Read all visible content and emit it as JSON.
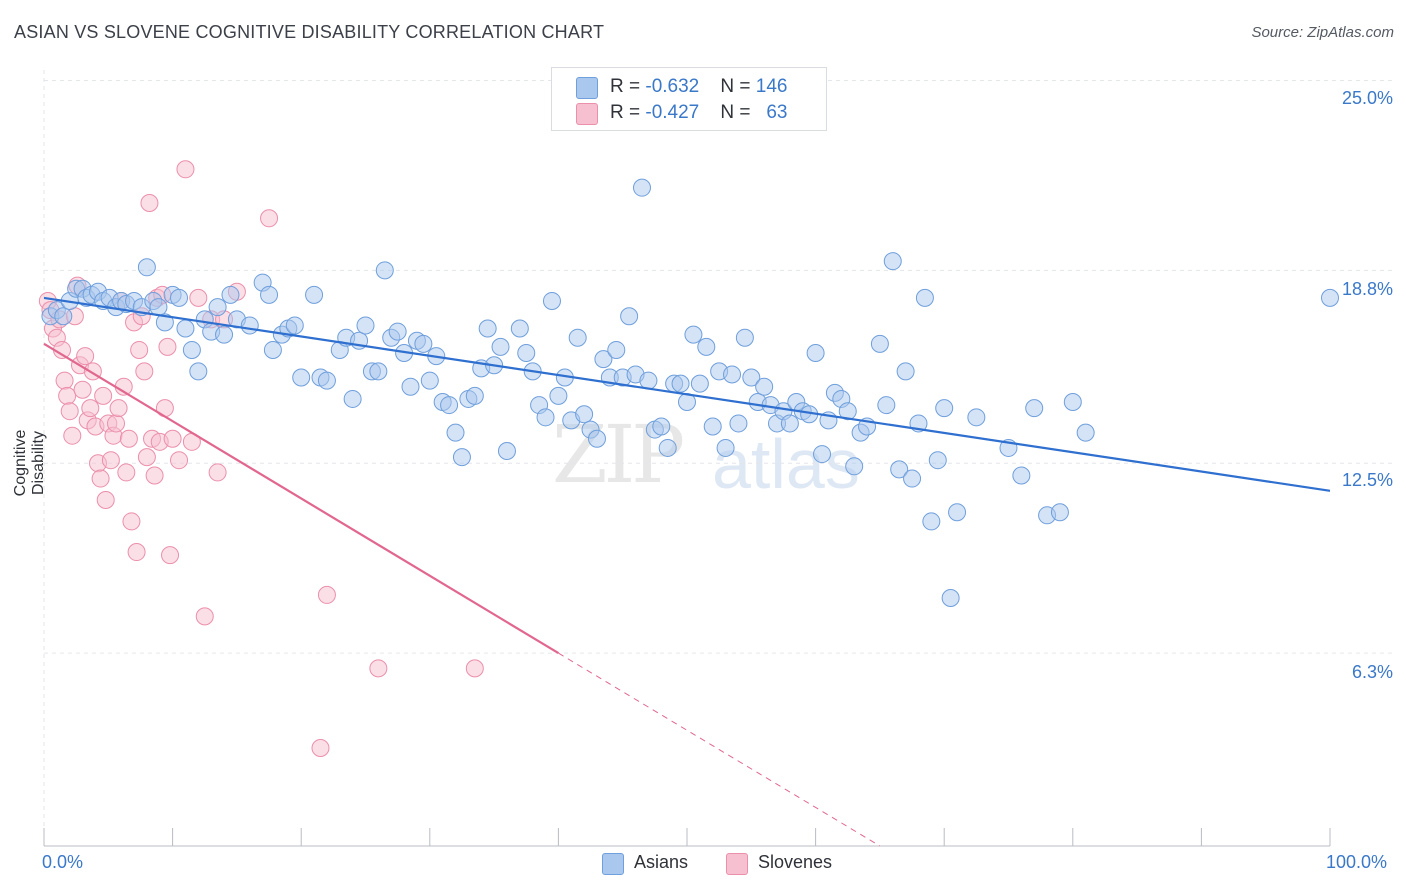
{
  "title": "ASIAN VS SLOVENE COGNITIVE DISABILITY CORRELATION CHART",
  "source": "Source: ZipAtlas.com",
  "watermark": {
    "zip": "ZIP",
    "atlas": "atlas"
  },
  "colors": {
    "asian_fill": "#aac8ee",
    "asian_stroke": "#6f9fdc",
    "asian_line": "#2e6fcf",
    "slovene_fill": "#f6c0d0",
    "slovene_stroke": "#ec8fab",
    "slovene_line": "#e2678f",
    "tick_label": "#3a78c9",
    "grid": "#e3e6ea"
  },
  "legend_top": {
    "asian": {
      "r_label": "R = ",
      "r_value": "-0.632",
      "n_label": "N = ",
      "n_value": "146"
    },
    "slovene": {
      "r_label": "R = ",
      "r_value": "-0.427",
      "n_label": "N = ",
      "n_value": "63"
    }
  },
  "legend_bottom": {
    "asian": "Asians",
    "slovene": "Slovenes"
  },
  "chart_data": {
    "type": "scatter",
    "title": "ASIAN VS SLOVENE COGNITIVE DISABILITY CORRELATION CHART",
    "xlabel": "",
    "ylabel": "Cognitive Disability",
    "xlim": [
      0,
      100
    ],
    "ylim": [
      0,
      26.3
    ],
    "x_tick_labels": [
      "0.0%",
      "100.0%"
    ],
    "y_ticks": [
      6.3,
      12.5,
      18.8,
      25.0
    ],
    "y_tick_labels": [
      "6.3%",
      "12.5%",
      "18.8%",
      "25.0%"
    ],
    "grid": true,
    "legend_placement": "top-center",
    "series": [
      {
        "name": "Asians",
        "trend": {
          "x": [
            0,
            100
          ],
          "y": [
            17.9,
            11.6
          ]
        },
        "points": [
          [
            0.5,
            17.3
          ],
          [
            1.0,
            17.5
          ],
          [
            1.5,
            17.3
          ],
          [
            2.0,
            17.8
          ],
          [
            2.5,
            18.2
          ],
          [
            3.0,
            18.2
          ],
          [
            3.3,
            17.9
          ],
          [
            3.7,
            18.0
          ],
          [
            4.2,
            18.1
          ],
          [
            4.6,
            17.8
          ],
          [
            5.1,
            17.9
          ],
          [
            5.6,
            17.6
          ],
          [
            6.0,
            17.8
          ],
          [
            6.4,
            17.7
          ],
          [
            7.0,
            17.8
          ],
          [
            7.6,
            17.6
          ],
          [
            8.0,
            18.9
          ],
          [
            8.5,
            17.8
          ],
          [
            8.9,
            17.6
          ],
          [
            9.4,
            17.1
          ],
          [
            10.0,
            18.0
          ],
          [
            10.5,
            17.9
          ],
          [
            11.0,
            16.9
          ],
          [
            11.5,
            16.2
          ],
          [
            12.0,
            15.5
          ],
          [
            12.5,
            17.2
          ],
          [
            13.0,
            16.8
          ],
          [
            13.5,
            17.6
          ],
          [
            14.0,
            16.7
          ],
          [
            14.5,
            18.0
          ],
          [
            15.0,
            17.2
          ],
          [
            16.0,
            17.0
          ],
          [
            17.0,
            18.4
          ],
          [
            17.5,
            18.0
          ],
          [
            17.8,
            16.2
          ],
          [
            18.5,
            16.7
          ],
          [
            19.0,
            16.9
          ],
          [
            19.5,
            17.0
          ],
          [
            20.0,
            15.3
          ],
          [
            21.0,
            18.0
          ],
          [
            21.5,
            15.3
          ],
          [
            22.0,
            15.2
          ],
          [
            23.0,
            16.2
          ],
          [
            23.5,
            16.6
          ],
          [
            24.0,
            14.6
          ],
          [
            24.5,
            16.5
          ],
          [
            25.0,
            17.0
          ],
          [
            25.5,
            15.5
          ],
          [
            26.0,
            15.5
          ],
          [
            26.5,
            18.8
          ],
          [
            27.0,
            16.6
          ],
          [
            27.5,
            16.8
          ],
          [
            28.0,
            16.1
          ],
          [
            28.5,
            15.0
          ],
          [
            29.0,
            16.5
          ],
          [
            29.5,
            16.4
          ],
          [
            30.0,
            15.2
          ],
          [
            30.5,
            16.0
          ],
          [
            31.0,
            14.5
          ],
          [
            31.5,
            14.4
          ],
          [
            32.0,
            13.5
          ],
          [
            32.5,
            12.7
          ],
          [
            33.0,
            14.6
          ],
          [
            33.5,
            14.7
          ],
          [
            34.0,
            15.6
          ],
          [
            34.5,
            16.9
          ],
          [
            35.0,
            15.7
          ],
          [
            35.5,
            16.3
          ],
          [
            36.0,
            12.9
          ],
          [
            37.0,
            16.9
          ],
          [
            37.5,
            16.1
          ],
          [
            38.0,
            15.5
          ],
          [
            38.5,
            14.4
          ],
          [
            39.0,
            14.0
          ],
          [
            39.5,
            17.8
          ],
          [
            40.0,
            14.7
          ],
          [
            40.5,
            15.3
          ],
          [
            41.0,
            13.9
          ],
          [
            41.5,
            16.6
          ],
          [
            42.0,
            14.1
          ],
          [
            42.5,
            13.6
          ],
          [
            43.0,
            13.3
          ],
          [
            43.5,
            15.9
          ],
          [
            44.0,
            15.3
          ],
          [
            44.5,
            16.2
          ],
          [
            45.0,
            15.3
          ],
          [
            45.5,
            17.3
          ],
          [
            46.0,
            15.4
          ],
          [
            46.5,
            21.5
          ],
          [
            47.0,
            15.2
          ],
          [
            47.5,
            13.6
          ],
          [
            48.0,
            13.7
          ],
          [
            48.5,
            13.0
          ],
          [
            49.0,
            15.1
          ],
          [
            49.5,
            15.1
          ],
          [
            50.0,
            14.5
          ],
          [
            50.5,
            16.7
          ],
          [
            51.0,
            15.1
          ],
          [
            51.5,
            16.3
          ],
          [
            52.0,
            13.7
          ],
          [
            52.5,
            15.5
          ],
          [
            53.0,
            13.0
          ],
          [
            53.5,
            15.4
          ],
          [
            54.0,
            13.8
          ],
          [
            54.5,
            16.6
          ],
          [
            55.0,
            15.3
          ],
          [
            55.5,
            14.5
          ],
          [
            56.0,
            15.0
          ],
          [
            56.5,
            14.4
          ],
          [
            57.0,
            13.8
          ],
          [
            57.5,
            14.2
          ],
          [
            58.0,
            13.8
          ],
          [
            58.5,
            14.5
          ],
          [
            59.0,
            14.2
          ],
          [
            59.5,
            14.1
          ],
          [
            60.0,
            16.1
          ],
          [
            60.5,
            12.8
          ],
          [
            61.0,
            13.9
          ],
          [
            61.5,
            14.8
          ],
          [
            62.0,
            14.6
          ],
          [
            62.5,
            14.2
          ],
          [
            63.0,
            12.4
          ],
          [
            63.5,
            13.5
          ],
          [
            64.0,
            13.7
          ],
          [
            65.0,
            16.4
          ],
          [
            65.5,
            14.4
          ],
          [
            66.0,
            19.1
          ],
          [
            66.5,
            12.3
          ],
          [
            67.0,
            15.5
          ],
          [
            67.5,
            12.0
          ],
          [
            68.0,
            13.8
          ],
          [
            68.5,
            17.9
          ],
          [
            69.0,
            10.6
          ],
          [
            69.5,
            12.6
          ],
          [
            70.0,
            14.3
          ],
          [
            70.5,
            8.1
          ],
          [
            71.0,
            10.9
          ],
          [
            72.5,
            14.0
          ],
          [
            75.0,
            13.0
          ],
          [
            76.0,
            12.1
          ],
          [
            77.0,
            14.3
          ],
          [
            78.0,
            10.8
          ],
          [
            79.0,
            10.9
          ],
          [
            80.0,
            14.5
          ],
          [
            81.0,
            13.5
          ],
          [
            100.0,
            17.9
          ]
        ]
      },
      {
        "name": "Slovenes",
        "trend": {
          "x": [
            0,
            40
          ],
          "y": [
            16.4,
            6.3
          ],
          "dashed_to": [
            65,
            0
          ]
        },
        "points": [
          [
            0.3,
            17.8
          ],
          [
            0.5,
            17.5
          ],
          [
            0.7,
            16.9
          ],
          [
            1.0,
            16.6
          ],
          [
            1.2,
            17.2
          ],
          [
            1.4,
            16.2
          ],
          [
            1.6,
            15.2
          ],
          [
            1.8,
            14.7
          ],
          [
            2.0,
            14.2
          ],
          [
            2.2,
            13.4
          ],
          [
            2.4,
            17.3
          ],
          [
            2.6,
            18.3
          ],
          [
            2.8,
            15.7
          ],
          [
            3.0,
            14.9
          ],
          [
            3.2,
            16.0
          ],
          [
            3.4,
            13.9
          ],
          [
            3.6,
            14.3
          ],
          [
            3.8,
            15.5
          ],
          [
            4.0,
            13.7
          ],
          [
            4.2,
            12.5
          ],
          [
            4.4,
            12.0
          ],
          [
            4.6,
            14.7
          ],
          [
            4.8,
            11.3
          ],
          [
            5.0,
            13.8
          ],
          [
            5.2,
            12.6
          ],
          [
            5.4,
            13.4
          ],
          [
            5.6,
            13.8
          ],
          [
            5.8,
            14.3
          ],
          [
            6.0,
            17.8
          ],
          [
            6.2,
            15.0
          ],
          [
            6.4,
            12.2
          ],
          [
            6.6,
            13.3
          ],
          [
            6.8,
            10.6
          ],
          [
            7.0,
            17.1
          ],
          [
            7.2,
            9.6
          ],
          [
            7.4,
            16.2
          ],
          [
            7.6,
            17.3
          ],
          [
            7.8,
            15.5
          ],
          [
            8.0,
            12.7
          ],
          [
            8.2,
            21.0
          ],
          [
            8.4,
            13.3
          ],
          [
            8.6,
            12.1
          ],
          [
            8.8,
            17.9
          ],
          [
            9.0,
            13.2
          ],
          [
            9.2,
            18.0
          ],
          [
            9.4,
            14.3
          ],
          [
            9.6,
            16.3
          ],
          [
            9.8,
            9.5
          ],
          [
            10.0,
            13.3
          ],
          [
            10.5,
            12.6
          ],
          [
            11.0,
            22.1
          ],
          [
            11.5,
            13.2
          ],
          [
            12.0,
            17.9
          ],
          [
            12.5,
            7.5
          ],
          [
            13.0,
            17.2
          ],
          [
            13.5,
            12.2
          ],
          [
            14.0,
            17.2
          ],
          [
            15.0,
            18.1
          ],
          [
            17.5,
            20.5
          ],
          [
            21.5,
            3.2
          ],
          [
            22.0,
            8.2
          ],
          [
            26.0,
            5.8
          ],
          [
            33.5,
            5.8
          ]
        ]
      }
    ]
  }
}
